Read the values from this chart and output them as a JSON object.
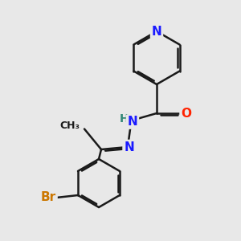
{
  "bg_color": "#e8e8e8",
  "bond_color": "#1a1a1a",
  "N_color": "#1a1aff",
  "O_color": "#ff2200",
  "Br_color": "#cc7700",
  "line_width": 1.8,
  "dbo": 0.07,
  "figsize": [
    3.0,
    3.0
  ],
  "dpi": 100,
  "xlim": [
    0,
    10
  ],
  "ylim": [
    0,
    10
  ]
}
